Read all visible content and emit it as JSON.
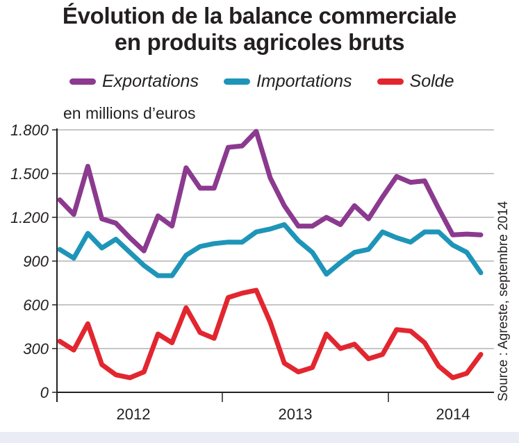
{
  "title_line1": "Évolution de la balance commerciale",
  "title_line2": "en produits agricoles bruts",
  "unit_label": "en millions d’euros",
  "source": "Source : Agreste, septembre 2014",
  "chart_data": {
    "type": "line",
    "title": "Évolution de la balance commerciale en produits agricoles bruts",
    "ylabel": "en millions d’euros",
    "xlabel": "",
    "ylim": [
      0,
      1800
    ],
    "yticks": [
      0,
      300,
      600,
      900,
      1200,
      1500,
      1800
    ],
    "ytick_labels": [
      "0",
      "300",
      "600",
      "900",
      "1.200",
      "1.500",
      "1.800"
    ],
    "x_year_labels": [
      "2012",
      "2013",
      "2014"
    ],
    "grid": "horizontal",
    "legend_position": "top",
    "series": [
      {
        "name": "Exportations",
        "color": "#8b3a8f",
        "values": [
          1320,
          1220,
          1550,
          1190,
          1160,
          1060,
          970,
          1210,
          1140,
          1540,
          1400,
          1400,
          1680,
          1690,
          1790,
          1470,
          1280,
          1140,
          1140,
          1200,
          1150,
          1280,
          1190,
          1340,
          1480,
          1440,
          1450,
          1260,
          1080,
          1085,
          1080
        ]
      },
      {
        "name": "Importations",
        "color": "#1e95b8",
        "values": [
          980,
          920,
          1090,
          990,
          1050,
          960,
          870,
          800,
          800,
          940,
          1000,
          1020,
          1030,
          1030,
          1100,
          1120,
          1150,
          1040,
          960,
          810,
          890,
          960,
          980,
          1100,
          1060,
          1030,
          1100,
          1100,
          1010,
          960,
          820
        ]
      },
      {
        "name": "Solde",
        "color": "#e2262f",
        "values": [
          350,
          290,
          470,
          190,
          120,
          100,
          140,
          400,
          340,
          580,
          410,
          370,
          650,
          680,
          700,
          480,
          200,
          140,
          170,
          400,
          300,
          330,
          230,
          260,
          430,
          420,
          340,
          180,
          100,
          130,
          260
        ]
      }
    ]
  }
}
